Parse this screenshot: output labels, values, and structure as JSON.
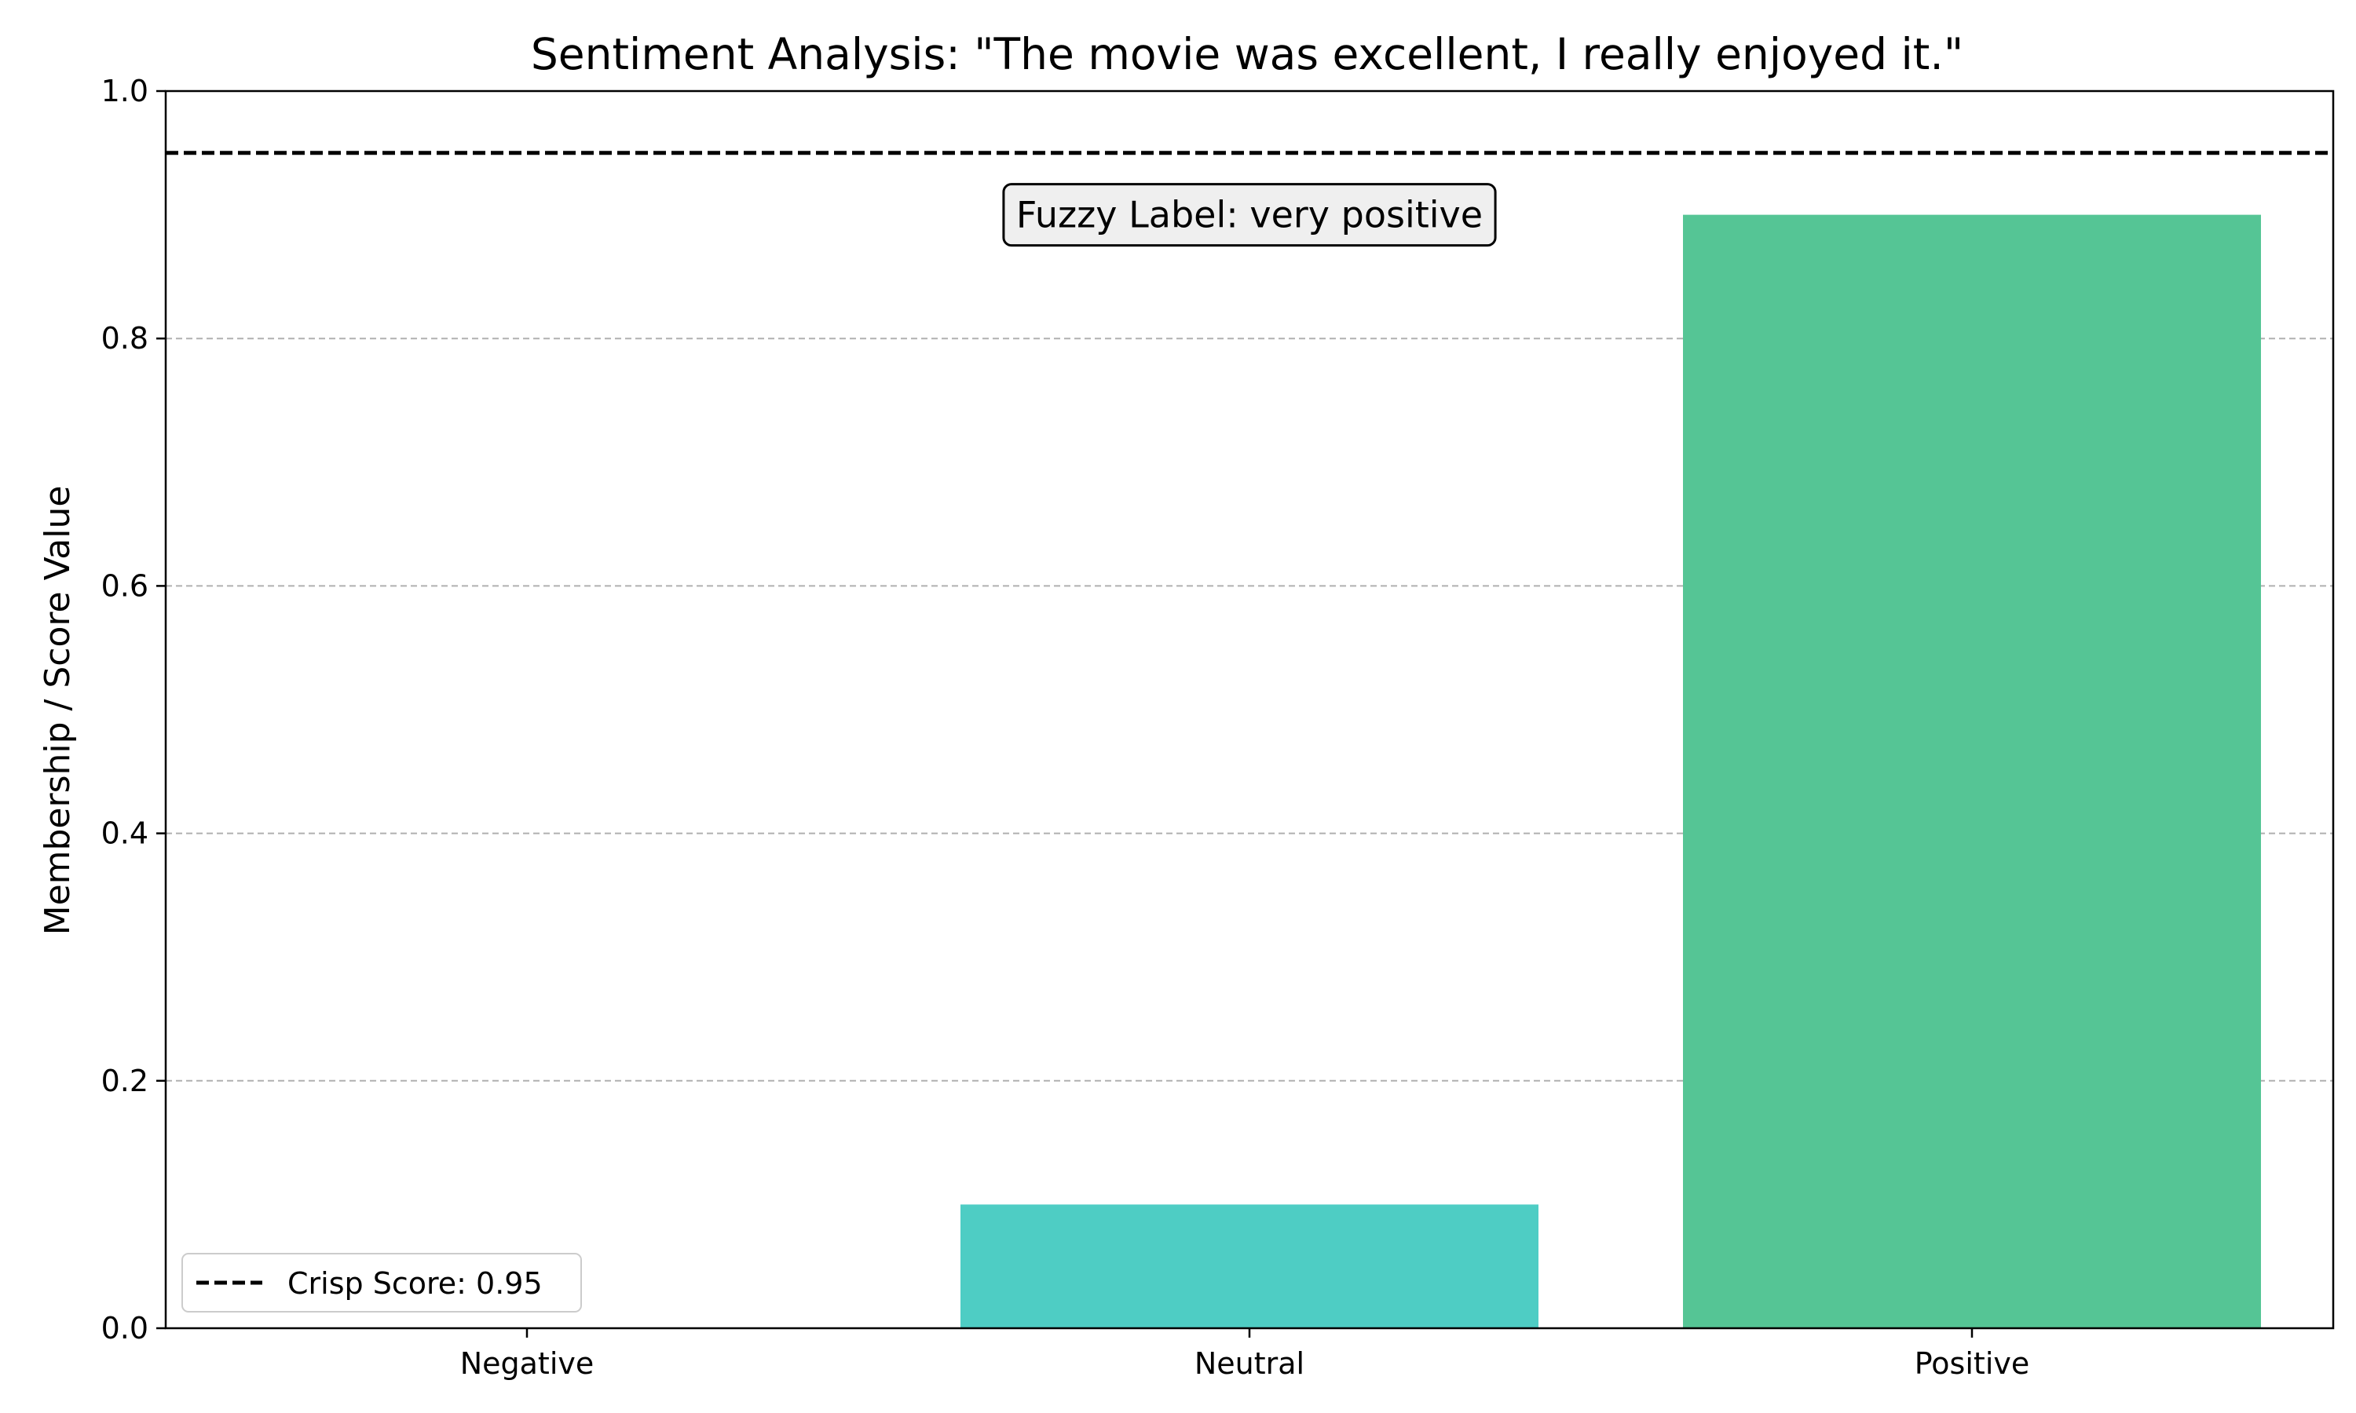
{
  "chart_data": {
    "type": "bar",
    "title": "Sentiment Analysis: \"The movie was excellent, I really enjoyed it.\"",
    "xlabel": "",
    "ylabel": "Membership / Score Value",
    "categories": [
      "Negative",
      "Neutral",
      "Positive"
    ],
    "values": [
      0.0,
      0.1,
      0.9
    ],
    "bar_colors": [
      "#4ecdc4",
      "#4ecdc4",
      "#55c595"
    ],
    "ylim": [
      0,
      1.0
    ],
    "yticks": [
      "0.0",
      "0.2",
      "0.4",
      "0.6",
      "0.8",
      "1.0"
    ],
    "grid": "y-dashed",
    "reference_line": {
      "value": 0.95,
      "style": "dashed",
      "color": "#000000",
      "legend_label": "Crisp Score: 0.95"
    },
    "annotation": {
      "text": "Fuzzy Label: very positive",
      "anchor_category": "Neutral",
      "anchor_y": 0.9
    },
    "legend_position": "lower-left"
  }
}
